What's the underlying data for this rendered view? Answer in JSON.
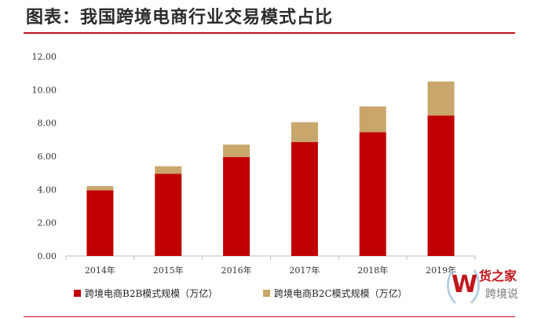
{
  "title": "图表：我国跨境电商行业交易模式占比",
  "colors": {
    "b2b": "#c00000",
    "b2c": "#c9a66b",
    "rule": "#c0161c"
  },
  "watermark": {
    "brand": "货之家",
    "sub": "跨境说",
    "logo_icon": "wreath-w-logo-icon"
  },
  "chart_data": {
    "type": "bar",
    "stacked": true,
    "categories": [
      "2014年",
      "2015年",
      "2016年",
      "2017年",
      "2018年",
      "2019年"
    ],
    "series": [
      {
        "name": "跨境电商B2B模式规模（万亿）",
        "values": [
          3.95,
          4.95,
          5.95,
          6.85,
          7.45,
          8.45
        ]
      },
      {
        "name": "跨境电商B2C模式规模（万亿）",
        "values": [
          0.25,
          0.45,
          0.75,
          1.2,
          1.55,
          2.05
        ]
      }
    ],
    "y_ticks": [
      "0.00",
      "2.00",
      "4.00",
      "6.00",
      "8.00",
      "10.00",
      "12.00"
    ],
    "ylim": [
      0,
      12
    ],
    "grid": false,
    "legend_position": "bottom"
  }
}
